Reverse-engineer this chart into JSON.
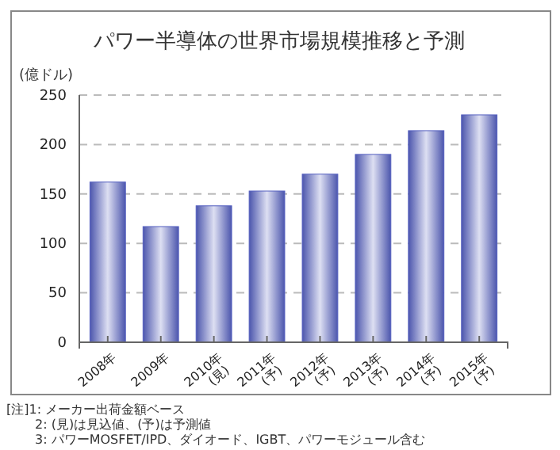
{
  "chart_data": {
    "type": "bar",
    "title": "パワー半導体の世界市場規模推移と予測",
    "ylabel": "(億ドル)",
    "categories": [
      "2008年",
      "2009年",
      "2010年\n(見)",
      "2011年\n(予)",
      "2012年\n(予)",
      "2013年\n(予)",
      "2014年\n(予)",
      "2015年\n(予)"
    ],
    "values": [
      162,
      117,
      138,
      153,
      170,
      190,
      214,
      230
    ],
    "color": "#5560c0",
    "ylim": [
      0,
      250
    ],
    "yticks": [
      0,
      50,
      100,
      150,
      200,
      250
    ],
    "grid": "y",
    "annotations": [
      "[注]1: メーカー出荷金額ベース",
      "2: (見)は見込値、(予)は予測値",
      "3: パワーMOSFET/IPD、ダイオード、IGBT、パワーモジュール含む"
    ]
  }
}
